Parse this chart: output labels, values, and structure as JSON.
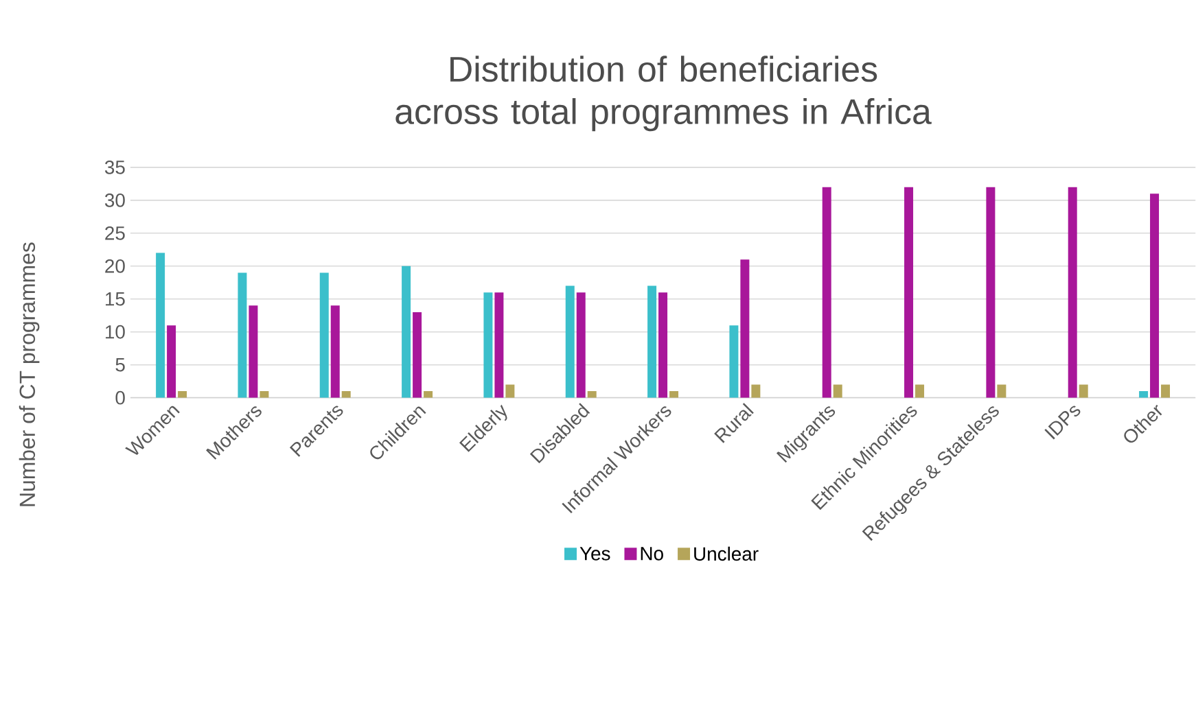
{
  "chart_data": {
    "type": "bar",
    "title": "Distribution of beneficiaries across total programmes in Africa",
    "ylabel": "Number of CT programmes",
    "categories": [
      "Women",
      "Mothers",
      "Parents",
      "Children",
      "Elderly",
      "Disabled",
      "Informal Workers",
      "Rural",
      "Migrants",
      "Ethnic Minorities",
      "Refugees & Stateless",
      "IDPs",
      "Other"
    ],
    "series": [
      {
        "name": "Yes",
        "color": "#3bbfcb",
        "values": [
          22,
          19,
          19,
          20,
          16,
          17,
          17,
          11,
          0,
          0,
          0,
          0,
          1
        ]
      },
      {
        "name": "No",
        "color": "#a8179a",
        "values": [
          11,
          14,
          14,
          13,
          16,
          16,
          16,
          21,
          32,
          32,
          32,
          32,
          31
        ]
      },
      {
        "name": "Unclear",
        "color": "#b5a55a",
        "values": [
          1,
          1,
          1,
          1,
          2,
          1,
          1,
          2,
          2,
          2,
          2,
          2,
          2
        ]
      }
    ],
    "ylim": [
      0,
      35
    ],
    "yticks": [
      0,
      5,
      10,
      15,
      20,
      25,
      30,
      35
    ],
    "grid": "y",
    "legend": "bottom"
  }
}
